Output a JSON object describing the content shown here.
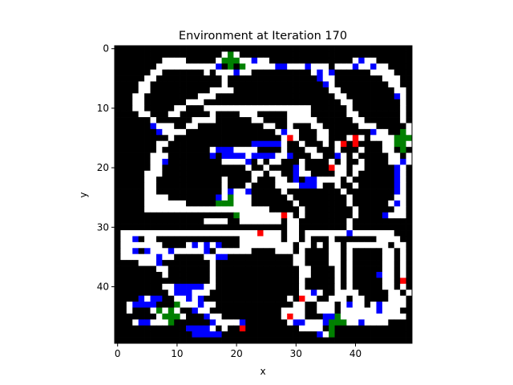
{
  "chart_data": {
    "type": "heatmap",
    "title": "Environment at Iteration 170",
    "xlabel": "x",
    "ylabel": "y",
    "grid_size": [
      50,
      50
    ],
    "xlim": [
      -0.5,
      49.5
    ],
    "ylim": [
      49.5,
      -0.5
    ],
    "x_ticks": [
      0,
      10,
      20,
      30,
      40
    ],
    "y_ticks": [
      0,
      10,
      20,
      30,
      40
    ],
    "grid": false,
    "colors": {
      "wall": "#000000",
      "open": "#ffffff",
      "blue_agent": "#0000ff",
      "red_agent": "#ff0000",
      "green_marker": "#008000"
    },
    "cell_legend": {
      "W": "wall",
      ".": "open",
      "B": "blue_agent",
      "R": "red_agent",
      "G": "green_marker"
    },
    "rows": [
      "WWWWWWWWWWWWWWWWWWWWWWWWWWWWWWWWWWWWWWWWWWWWWWWWWW",
      "WWWWWWWWWWWWWWWWWW.G.WWWWWWWWWWWWWWWWWWWWWWWWWWWWW",
      "WWWWWWWW....WWWWW.GGG..B..WWWWWWWWWWWWWW.B..WWWWWW",
      "WWWWWWW..........BWGWG.....BB...B...W...B..B..WWWW",
      "WWWWWW..WWWWWWW.W...B..WWWWWWWWWW.B.BWWWWWW....WWW",
      "WWWWW..WWWWWWWWWWW.WWWWWWWWWWWWWWWB..WWWWWWWW...WW",
      "WWWW..WWWWWWWWWWWW.WWWWWWWWWWWWWWWWB.WWWWWWWWW..WW",
      "WWWW..WWWWWWWWWW....WWWWWWWWWWWWWWWW..WWWWWWWWW..W",
      "WWW..WWWWWWWWW...WWWWWWWWWWWWWWWWWWWW..WWWWWWWWB.W",
      "WWW..WWWWWWW...WWWWWWWWWWWWWWWWWWWWWWW..WWWWWWWW.W",
      "WWW..WWWWW..WWW..................WWWWWW.WWWWWWWW.W",
      "WWWW..WWW..WWWWW.WWWW...WWWWW....WWWWWW..WWWWWWW.W",
      "WWWWWW.WWWWWW....WWWWWW..WWWW.....WWWWWW..WWWWWW.W",
      "WWWWWWB...WW..WWWWWWWWWWW..WW.WWW..WWWWWW...WWWWW.W",
      "WWWWWWWB....WWWWWWWWWWWWWWW.B..WWW..WWWWWWWB..WWG.W",
      "WWWWWWWWW.WWWWWWWWWWWWWWWWWW.R.WWW..WWW.R.W....GGGW",
      "WWWWWWW..WWWWWWWWWWWWWWBBBBB.WW.WWW.W.RWRWWWW..GG.W",
      "WWWWWWW.WWWWWWWW.BBB....WWWW.WWW..WWW.WWW.WWW..WGW.",
      "WWWWWW...WWWWWWWBWBBBB.BBBB..BWWW..WWB.W.WWWWW..W.W",
      "WWWWWW..BWWWWWWWWW....BW.W..WWW.WWWW.W.WW.WWWW..B.W",
      "WWWWWW..WWWWWWWWWWWWWW.WW.WWWWB.WWWWR..W..WWWWWB.W",
      "WWWWW...WWWWWWWWWWWWWWW..W..WWB..WWWW..W.WWWWWWB.W",
      "WWWWW..WWWWWWWWWWW.WWWW.WWW..WBWBB....W.WWWWWWWB.W",
      "WWWWW..WWWWWWWWWWW.WWW.WWWW....BBB.WW.WW.WWWWWWB.W",
      "WWWWW..WWWWWWWWWWW.B..BWWWWW.WWWWWWWWW.WWWWWWWWB.W",
      "WWWWW....WWWWWWWWB.G...WWWWWW.WWWWWWWWW.WWWWWWW..W",
      "WWWWW.......WWWWWGGG...WWWWWWW.WWWWWWWW.WWWWWW.B.W",
      "WWWWW.....................WWWWW.WWWWWWWW.WWWWWW..W",
      "WWWWWWWWWWWWWWWWWWWWG.......R.W.WWWWWWWW.WWWWB...W",
      "WWWWWWWWWWWWWWW....WW.......W..WWWWWWWW.WWWWWWWWWW",
      "WWWWWWWWWWWWWWWWWWWWWWWWWWWWW..WWWWWWWW.WWWWWWWWWW",
      "W.......................R...W..W.......B.......WW",
      "W..BW..WWWWWWWWWWWWWW.......W..W.WWW.WWWWWWW....WW",
      "W.......WWWW.B.B.BWWW.........W..W.W..W.......W..W",
      "W..BWB...B.....BW......WWWW...W.WWWW..W.WWWWW..W.W",
      "W......B..WWWWW..BBWWWWWWWWWWW..WWWW..W.WWWWW..W.W",
      "WWWW...BWWWWWWWW.WWWWWWWWWWWWW..WWWW..W.WWWWW..W.W",
      "WWWWWWW..WWWWWWW.WWWWWWWWWWWWWW..WWWW.W.WWWWW..W.W",
      "WWWWWWWW.WWWWWWW.WWWWWWWWWWWWWW..WWWW.W.WWWWB..W.W",
      "WWWWWWWWWWWWWWWW.WWWWWWWWWWWWWW.WWWWW.W.WWWWW..WRW",
      "WWWWWWWW..BBBBB..WWWWWWWWWWWWWW.WWWWW.W.WWWWW..W.W",
      "WWWWWWWWW.BBB...WWWWWWWWWWWWWWW..B.WW....WWWWW..W.",
      "WWWWB.BBWW..B.BWWWWWWWWWWWWWW.WR..WW...W..WWWW...W",
      "WW.BBBBWWWG...B..WWWWWWWWWWWWW..WW...W.B..W.B....W",
      "WW.WWW.G.G.WWB..WWWWWWWWWWWW....WW...W......B...WW",
      "WWWWWWW.GGG.WWWB..WWWWWWWWWW.R..WWWBBG...........W",
      "WWW.BB...GWWWWWWB....BWWWWWWW.BB...BGGG..B....WWWW",
      "WWWWWWWWWWWWBBBB.W.WWRWWWWWWWWW....WGWWWWWWWWWWWWW",
      "WWWWWWWWWWWWWBBBBBWWWWWWWWWWWWWWWWB.GWWWWWWWWWWWWW",
      "WWWWWWWWWWWWWWWWWWWWWWWWWWWWWWWWWWWWWWWWWWWWWWWWWW"
    ]
  }
}
